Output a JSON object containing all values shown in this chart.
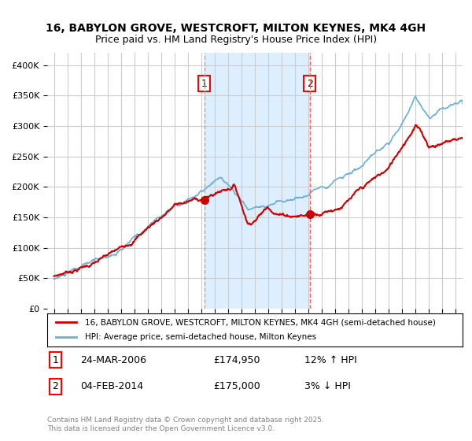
{
  "title_line1": "16, BABYLON GROVE, WESTCROFT, MILTON KEYNES, MK4 4GH",
  "title_line2": "Price paid vs. HM Land Registry's House Price Index (HPI)",
  "legend_line1": "16, BABYLON GROVE, WESTCROFT, MILTON KEYNES, MK4 4GH (semi-detached house)",
  "legend_line2": "HPI: Average price, semi-detached house, Milton Keynes",
  "annotation1_label": "1",
  "annotation1_date": "24-MAR-2006",
  "annotation1_price": "£174,950",
  "annotation1_hpi": "12% ↑ HPI",
  "annotation2_label": "2",
  "annotation2_date": "04-FEB-2014",
  "annotation2_price": "£175,000",
  "annotation2_hpi": "3% ↓ HPI",
  "footer": "Contains HM Land Registry data © Crown copyright and database right 2025.\nThis data is licensed under the Open Government Licence v3.0.",
  "sale1_year": 2006.23,
  "sale1_value": 174950,
  "sale2_year": 2014.09,
  "sale2_value": 175000,
  "hpi_color": "#6baed6",
  "price_color": "#cc0000",
  "sale_dot_color": "#cc0000",
  "vline1_color": "#aaaaaa",
  "vline2_color": "#ff6666",
  "shade_color": "#ddeeff",
  "background_color": "#ffffff",
  "grid_color": "#cccccc",
  "ylim": [
    0,
    420000
  ],
  "xlim_start": 1994.5,
  "xlim_end": 2025.5
}
